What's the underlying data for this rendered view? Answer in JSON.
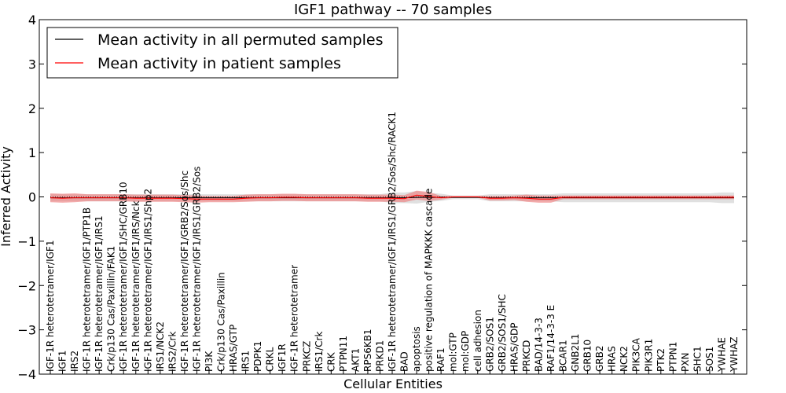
{
  "chart_data": {
    "type": "line",
    "title": "IGF1 pathway -- 70 samples",
    "xlabel": "Cellular Entities",
    "ylabel": "Inferred Activity",
    "ylim": [
      -4,
      4
    ],
    "yticks": [
      -4,
      -3,
      -2,
      -1,
      0,
      1,
      2,
      3,
      4
    ],
    "legend_position": "top-left",
    "colors": {
      "permuted_line": "#000000",
      "patient_line": "#ff0000",
      "permuted_band": "#cccccc",
      "patient_band": "#ee7777"
    },
    "categories": [
      "IGF-1R heterotetramer/IGF1",
      "IGF1",
      "IRS2",
      "IGF-1R heterotetramer/IGF1/PTP1B",
      "IGF-1R heterotetramer/IGF1/IRS1",
      "Crk/p130 Cas/Paxillin/FAK1",
      "IGF-1R heterotetramer/IGF1/SHC/GRB10",
      "IGF-1R heterotetramer/IGF1/IRS/Nck",
      "IGF-1R heterotetramer/IGF1/IRS1/Shp2",
      "IRS1/NCK2",
      "IRS2/Crk",
      "IGF-1R heterotetramer/IGF1/GRB2/Sos/Shc",
      "IGF-1R heterotetramer/IGF1/IRS1/GRB2/Sos",
      "PI3K",
      "Crk/p130 Cas/Paxillin",
      "HRAS/GTP",
      "IRS1",
      "PDPK1",
      "CRKL",
      "IGF1R",
      "IGF-1R heterotetramer",
      "PRKCZ",
      "IRS1/Crk",
      "CRK",
      "PTPN11",
      "AKT1",
      "RPS6KB1",
      "PRKD1",
      "IGF-1R heterotetramer/IGF1/IRS1/GRB2/Sos/Shc/RACK1",
      "BAD",
      "apoptosis",
      "positive regulation of MAPKKK cascade",
      "RAF1",
      "mol:GTP",
      "mol:GDP",
      "cell adhesion",
      "GRB2/SOS1",
      "GRB2/SOS1/SHC",
      "HRAS/GDP",
      "PRKCD",
      "BAD/14-3-3",
      "RAF1/14-3-3 E",
      "BCAR1",
      "GNB2L1",
      "GRB10",
      "GRB2",
      "HRAS",
      "NCK2",
      "PIK3CA",
      "PIK3R1",
      "PTK2",
      "PTPN1",
      "PXN",
      "SHC1",
      "SOS1",
      "YWHAE",
      "YWHAZ"
    ],
    "series": [
      {
        "name": "Mean activity in all permuted samples",
        "values": [
          -0.02,
          -0.02,
          -0.02,
          -0.02,
          -0.02,
          -0.02,
          -0.02,
          -0.02,
          -0.02,
          -0.02,
          -0.02,
          -0.02,
          -0.02,
          -0.02,
          -0.02,
          -0.02,
          -0.02,
          -0.02,
          -0.02,
          -0.02,
          -0.02,
          -0.02,
          -0.02,
          -0.02,
          -0.02,
          -0.02,
          -0.02,
          -0.02,
          -0.02,
          -0.02,
          -0.01,
          -0.01,
          -0.01,
          -0.01,
          -0.01,
          -0.01,
          -0.02,
          -0.02,
          -0.02,
          -0.02,
          -0.02,
          -0.02,
          -0.02,
          -0.02,
          -0.02,
          -0.02,
          -0.02,
          -0.02,
          -0.02,
          -0.02,
          -0.02,
          -0.02,
          -0.02,
          -0.02,
          -0.02,
          -0.02,
          -0.02
        ],
        "band": [
          0.08,
          0.08,
          0.08,
          0.08,
          0.08,
          0.08,
          0.08,
          0.08,
          0.08,
          0.08,
          0.08,
          0.08,
          0.08,
          0.08,
          0.08,
          0.08,
          0.08,
          0.08,
          0.08,
          0.08,
          0.08,
          0.08,
          0.08,
          0.08,
          0.08,
          0.08,
          0.08,
          0.08,
          0.12,
          0.12,
          0.14,
          0.1,
          0.08,
          0.04,
          0.04,
          0.04,
          0.08,
          0.08,
          0.08,
          0.08,
          0.08,
          0.08,
          0.1,
          0.1,
          0.1,
          0.1,
          0.1,
          0.1,
          0.1,
          0.1,
          0.1,
          0.1,
          0.1,
          0.1,
          0.1,
          0.12,
          0.12
        ]
      },
      {
        "name": "Mean activity in patient samples",
        "values": [
          -0.02,
          -0.03,
          -0.02,
          -0.02,
          -0.02,
          -0.02,
          -0.02,
          -0.03,
          -0.03,
          -0.03,
          -0.03,
          -0.04,
          -0.05,
          -0.05,
          -0.05,
          -0.05,
          -0.03,
          -0.02,
          -0.02,
          -0.01,
          -0.01,
          -0.02,
          -0.02,
          -0.02,
          -0.02,
          -0.02,
          -0.03,
          -0.03,
          -0.03,
          -0.04,
          0.04,
          0.01,
          -0.02,
          0.0,
          0.0,
          0.0,
          -0.03,
          -0.03,
          -0.02,
          -0.03,
          -0.05,
          -0.05,
          -0.01,
          -0.01,
          -0.01,
          -0.01,
          -0.01,
          -0.01,
          -0.01,
          -0.01,
          -0.01,
          -0.01,
          -0.01,
          -0.01,
          -0.01,
          -0.01,
          -0.01
        ],
        "band": [
          0.1,
          0.1,
          0.1,
          0.08,
          0.08,
          0.08,
          0.08,
          0.08,
          0.08,
          0.08,
          0.08,
          0.08,
          0.08,
          0.07,
          0.07,
          0.07,
          0.08,
          0.08,
          0.08,
          0.08,
          0.08,
          0.08,
          0.08,
          0.08,
          0.08,
          0.08,
          0.08,
          0.08,
          0.08,
          0.08,
          0.1,
          0.1,
          0.04,
          0.02,
          0.02,
          0.02,
          0.05,
          0.05,
          0.05,
          0.08,
          0.08,
          0.08,
          0.04,
          0.04,
          0.04,
          0.04,
          0.04,
          0.04,
          0.04,
          0.04,
          0.04,
          0.04,
          0.04,
          0.04,
          0.04,
          0.04,
          0.04
        ]
      }
    ]
  }
}
